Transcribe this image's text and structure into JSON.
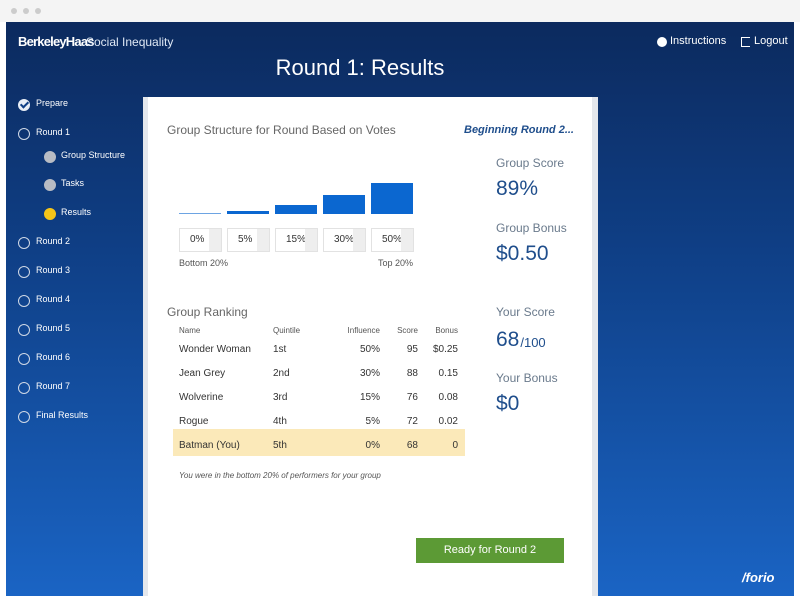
{
  "header": {
    "logo": "BerkeleyHaas",
    "app_title": "Social Inequality",
    "instructions": "Instructions",
    "logout": "Logout",
    "page_title": "Round 1: Results"
  },
  "sidebar": {
    "items": [
      {
        "label": "Prepare",
        "state": "done",
        "level": 1
      },
      {
        "label": "Round 1",
        "state": "open",
        "level": 1
      },
      {
        "label": "Group Structure",
        "state": "visited",
        "level": 2
      },
      {
        "label": "Tasks",
        "state": "visited",
        "level": 2
      },
      {
        "label": "Results",
        "state": "current",
        "level": 2
      },
      {
        "label": "Round 2",
        "state": "open",
        "level": 1
      },
      {
        "label": "Round 3",
        "state": "open",
        "level": 1
      },
      {
        "label": "Round 4",
        "state": "open",
        "level": 1
      },
      {
        "label": "Round 5",
        "state": "open",
        "level": 1
      },
      {
        "label": "Round 6",
        "state": "open",
        "level": 1
      },
      {
        "label": "Round 7",
        "state": "open",
        "level": 1
      },
      {
        "label": "Final Results",
        "state": "open",
        "level": 1
      }
    ]
  },
  "structure": {
    "title": "Group Structure for Round Based on Votes",
    "values": [
      0,
      5,
      15,
      30,
      50
    ],
    "value_labels": [
      "0%",
      "5%",
      "15%",
      "30%",
      "50%"
    ],
    "left_label": "Bottom 20%",
    "right_label": "Top 20%",
    "color": "#0b67d0"
  },
  "status": "Beginning Round 2...",
  "stats": [
    {
      "label": "Group Score",
      "value": "89%"
    },
    {
      "label": "Group Bonus",
      "value": "$0.50"
    },
    {
      "label": "Your Score",
      "value": "68",
      "suffix": "/100"
    },
    {
      "label": "Your Bonus",
      "value": "$0"
    }
  ],
  "ranking": {
    "title": "Group Ranking",
    "columns": [
      "Name",
      "Quintile",
      "Influence",
      "Score",
      "Bonus"
    ],
    "rows": [
      [
        "Wonder Woman",
        "1st",
        "50%",
        "95",
        "$0.25"
      ],
      [
        "Jean Grey",
        "2nd",
        "30%",
        "88",
        "0.15"
      ],
      [
        "Wolverine",
        "3rd",
        "15%",
        "76",
        "0.08"
      ],
      [
        "Rogue",
        "4th",
        "5%",
        "72",
        "0.02"
      ],
      [
        "Batman (You)",
        "5th",
        "0%",
        "68",
        "0"
      ]
    ],
    "highlight_row": 4,
    "note": "You were in the bottom 20% of performers for your group"
  },
  "button": "Ready for Round 2",
  "footer_logo": "/forio"
}
